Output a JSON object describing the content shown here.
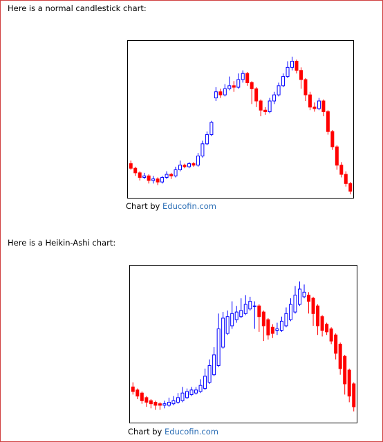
{
  "sections": [
    {
      "heading": "Here is a normal candlestick chart:",
      "credit": "Chart by",
      "link": "Educofin.com"
    },
    {
      "heading": "Here is a Heikin-Ashi chart:",
      "credit": "Chart by",
      "link": "Educofin.com"
    }
  ],
  "chart_data": [
    {
      "type": "candlestick",
      "ylim": [
        0,
        100
      ],
      "up_color": "#0000ff",
      "down_color": "#ff0000",
      "open": [
        21,
        18,
        15,
        12,
        13,
        10,
        11,
        9,
        12,
        14,
        13,
        17,
        20,
        19,
        21,
        20,
        26,
        34,
        40,
        64,
        68,
        66,
        70,
        72,
        71,
        76,
        80,
        74,
        70,
        62,
        56,
        55,
        62,
        66,
        72,
        78,
        84,
        88,
        82,
        76,
        66,
        58,
        57,
        62,
        55,
        42,
        32,
        20,
        14,
        8
      ],
      "high": [
        23,
        19,
        16,
        15,
        14,
        13,
        12,
        13,
        16,
        15,
        19,
        23,
        21,
        22,
        22,
        28,
        36,
        42,
        49,
        71,
        70,
        73,
        78,
        75,
        80,
        82,
        81,
        75,
        71,
        63,
        58,
        64,
        68,
        74,
        80,
        88,
        91,
        89,
        84,
        77,
        68,
        61,
        64,
        63,
        56,
        43,
        33,
        22,
        16,
        9
      ],
      "low": [
        17,
        13,
        10,
        11,
        8,
        8,
        7,
        8,
        11,
        11,
        12,
        16,
        18,
        18,
        19,
        19,
        25,
        33,
        39,
        62,
        64,
        65,
        69,
        68,
        70,
        74,
        72,
        60,
        58,
        52,
        53,
        54,
        60,
        65,
        71,
        77,
        82,
        80,
        70,
        62,
        56,
        55,
        56,
        52,
        40,
        30,
        17,
        12,
        6,
        1
      ],
      "close": [
        18,
        15,
        12,
        13,
        10,
        11,
        9,
        12,
        14,
        13,
        17,
        20,
        19,
        21,
        20,
        26,
        34,
        40,
        48,
        68,
        66,
        70,
        72,
        71,
        76,
        80,
        74,
        70,
        62,
        56,
        55,
        62,
        66,
        72,
        78,
        84,
        88,
        82,
        76,
        66,
        58,
        57,
        62,
        55,
        42,
        32,
        20,
        14,
        8,
        3
      ]
    },
    {
      "type": "candlestick",
      "ylim": [
        0,
        100
      ],
      "up_color": "#0000ff",
      "down_color": "#ff0000",
      "open": [
        22,
        20,
        18,
        15,
        13,
        12,
        11,
        10,
        10,
        11,
        12,
        13,
        15,
        17,
        18,
        19,
        21,
        25,
        30,
        36,
        48,
        57,
        62,
        66,
        68,
        70,
        73,
        75,
        75,
        71,
        66,
        61,
        59,
        59,
        62,
        66,
        71,
        76,
        81,
        82,
        80,
        75,
        68,
        63,
        60,
        56,
        50,
        42,
        33,
        24
      ],
      "high": [
        25,
        21,
        19,
        16,
        14,
        13,
        12,
        13,
        15,
        16,
        18,
        22,
        21,
        22,
        22,
        27,
        34,
        40,
        48,
        70,
        71,
        72,
        78,
        75,
        80,
        82,
        81,
        78,
        76,
        72,
        67,
        63,
        64,
        68,
        74,
        80,
        88,
        91,
        89,
        84,
        81,
        76,
        69,
        64,
        61,
        57,
        51,
        43,
        34,
        25
      ],
      "low": [
        17,
        14,
        11,
        9,
        8,
        7,
        7,
        8,
        9,
        10,
        11,
        12,
        14,
        16,
        17,
        18,
        20,
        24,
        29,
        35,
        47,
        56,
        60,
        64,
        67,
        69,
        72,
        60,
        58,
        52,
        53,
        54,
        56,
        58,
        61,
        65,
        70,
        75,
        80,
        70,
        62,
        56,
        55,
        56,
        50,
        40,
        30,
        17,
        12,
        6
      ],
      "close": [
        19,
        16,
        13,
        12,
        11,
        10,
        10,
        11,
        12,
        13,
        15,
        18,
        19,
        20,
        20,
        23,
        29,
        36,
        43,
        60,
        67,
        68,
        70,
        71,
        72,
        76,
        78,
        75,
        68,
        62,
        56,
        57,
        60,
        65,
        70,
        76,
        82,
        86,
        84,
        78,
        70,
        62,
        59,
        58,
        52,
        44,
        34,
        24,
        16,
        9
      ]
    }
  ]
}
